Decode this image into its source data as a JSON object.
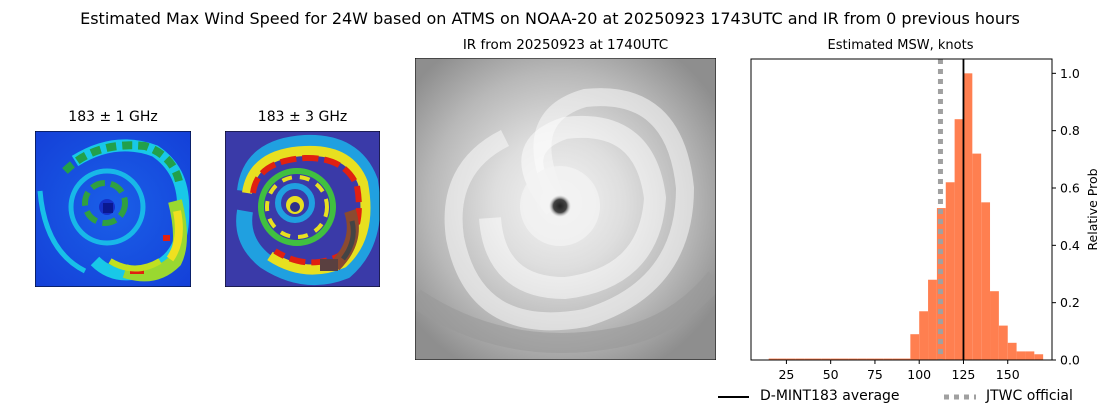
{
  "figure": {
    "title": "Estimated Max Wind Speed for 24W based on ATMS on NOAA-20 at 20250923 1743UTC and IR from 0 previous hours"
  },
  "panels": {
    "mw1_title": "183 ± 1 GHz",
    "mw3_title": "183 ± 3 GHz",
    "ir_title": "IR from 20250923 at 1740UTC"
  },
  "chart_data": {
    "type": "bar",
    "title": "Estimated MSW, knots",
    "xlabel": "",
    "ylabel": "Relative Prob",
    "xlim": [
      5,
      175
    ],
    "ylim": [
      0,
      1.05
    ],
    "xticks": [
      25,
      50,
      75,
      100,
      125,
      150
    ],
    "yticks": [
      0.0,
      0.2,
      0.4,
      0.6,
      0.8,
      1.0
    ],
    "ytick_labels": [
      "0.0",
      "0.2",
      "0.4",
      "0.6",
      "0.8",
      "1.0"
    ],
    "ytick_side": "right",
    "bin_width": 5,
    "bin_starts": [
      15,
      20,
      25,
      30,
      35,
      40,
      45,
      50,
      55,
      60,
      65,
      70,
      75,
      80,
      85,
      90,
      95,
      100,
      105,
      110,
      115,
      120,
      125,
      130,
      135,
      140,
      145,
      150,
      155,
      160,
      165
    ],
    "values": [
      0.005,
      0.005,
      0.005,
      0.005,
      0.005,
      0.005,
      0.005,
      0.005,
      0.005,
      0.005,
      0.005,
      0.005,
      0.005,
      0.005,
      0.005,
      0.005,
      0.09,
      0.17,
      0.28,
      0.53,
      0.62,
      0.84,
      1.0,
      0.72,
      0.55,
      0.24,
      0.12,
      0.06,
      0.03,
      0.03,
      0.02
    ],
    "bar_color": "#ff7f50",
    "lines": [
      {
        "name": "D-MINT183 average",
        "x": 125,
        "style": "solid",
        "color": "#000000"
      },
      {
        "name": "JTWC official",
        "x": 112,
        "style": "dotted",
        "color": "#a0a0a0"
      }
    ],
    "legend_position": "bottom-right"
  },
  "legend": {
    "items": [
      {
        "label": "D-MINT183 average"
      },
      {
        "label": "JTWC official"
      }
    ]
  }
}
